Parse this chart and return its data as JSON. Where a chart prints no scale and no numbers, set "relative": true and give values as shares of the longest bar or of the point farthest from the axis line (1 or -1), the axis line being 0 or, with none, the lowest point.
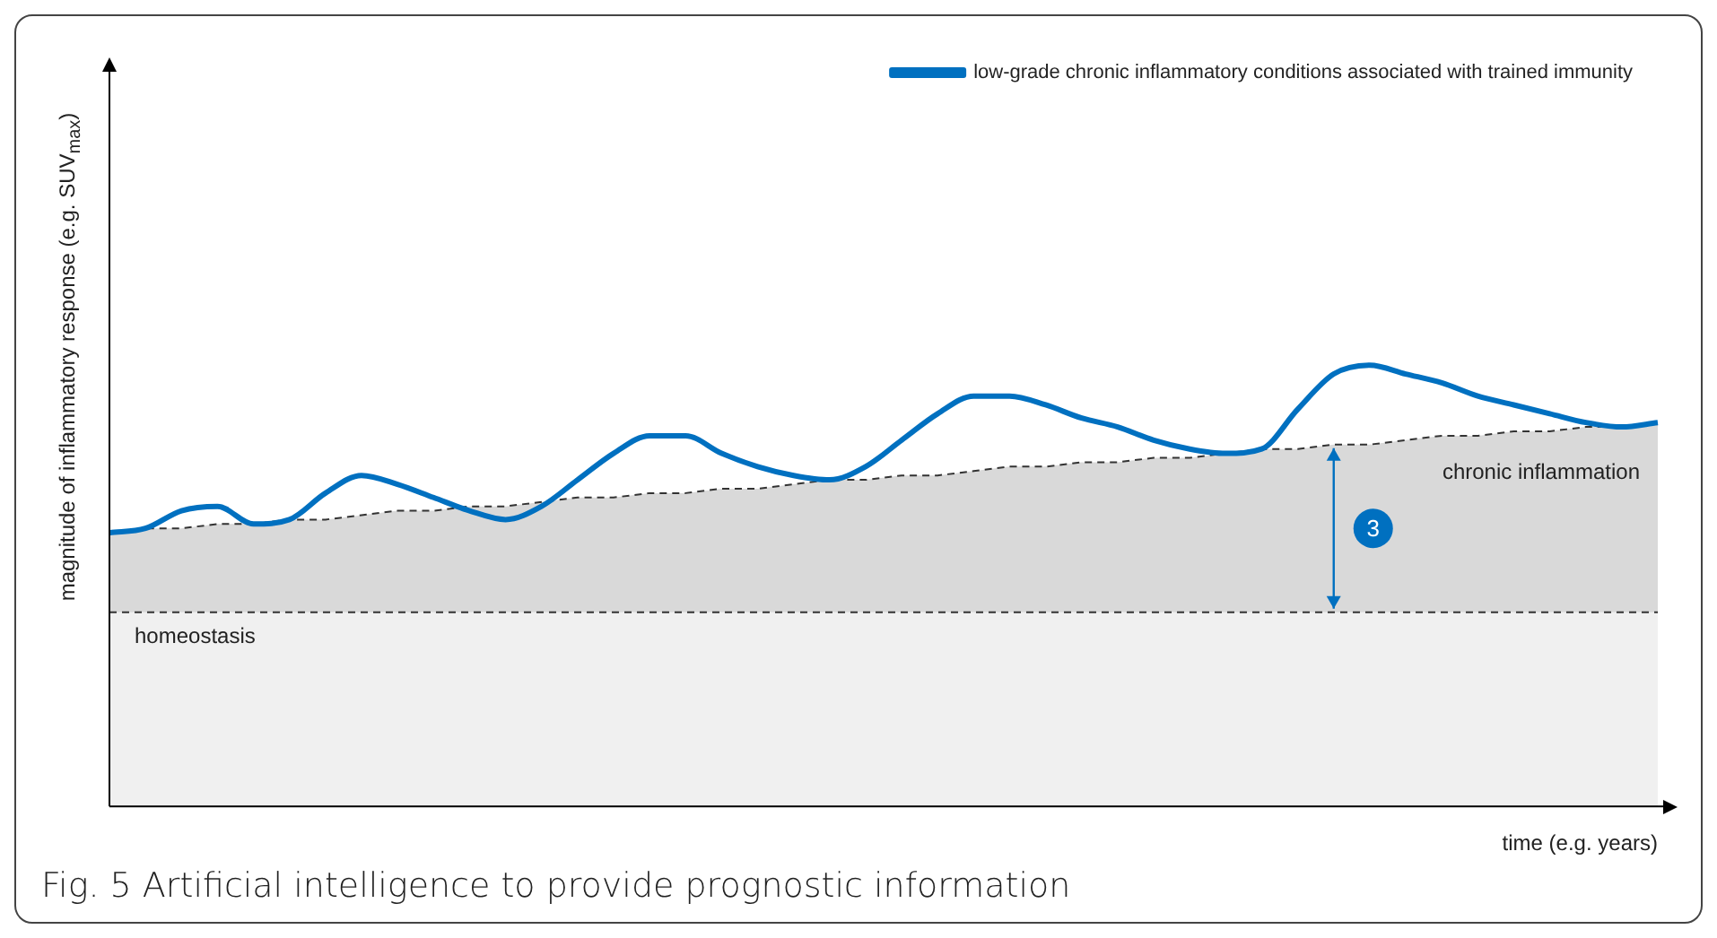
{
  "chart_data": {
    "type": "line",
    "relative": true,
    "title": "Fig. 5  Artificial intelligence to provide prognostic information",
    "xlabel": "time (e.g. years)",
    "ylabel": "magnitude of inflammatory response (e.g. SUV$_{max}$)",
    "categories": [
      null,
      null,
      null,
      null,
      null,
      null,
      null,
      null,
      null,
      null,
      null,
      null,
      null,
      null,
      null,
      null,
      null,
      null,
      null,
      null,
      null,
      null,
      null,
      null,
      null,
      null,
      null,
      null,
      null,
      null,
      null,
      null,
      null,
      null,
      null,
      null,
      null,
      null,
      null,
      null,
      null,
      null,
      null,
      null
    ],
    "series": [
      {
        "type": "area",
        "name": "chronic inflammation",
        "color": "#d9d9d9",
        "line_style": "dashed",
        "values": [
          0.62,
          0.63,
          0.63,
          0.64,
          0.64,
          0.65,
          0.65,
          0.66,
          0.67,
          0.67,
          0.68,
          0.68,
          0.69,
          0.7,
          0.7,
          0.71,
          0.71,
          0.72,
          0.72,
          0.73,
          0.74,
          0.74,
          0.75,
          0.75,
          0.76,
          0.77,
          0.77,
          0.78,
          0.78,
          0.79,
          0.79,
          0.8,
          0.81,
          0.81,
          0.82,
          0.82,
          0.83,
          0.84,
          0.84,
          0.85,
          0.85,
          0.86,
          0.86,
          0.87
        ]
      },
      {
        "type": "line",
        "name": "low-grade chronic inflammatory conditions associated with trained immunity",
        "color": "#0070c0",
        "line_style": "solid",
        "values": [
          0.62,
          0.63,
          0.67,
          0.68,
          0.64,
          0.65,
          0.71,
          0.75,
          0.73,
          0.7,
          0.67,
          0.65,
          0.68,
          0.74,
          0.8,
          0.84,
          0.84,
          0.8,
          0.77,
          0.75,
          0.74,
          0.77,
          0.83,
          0.89,
          0.93,
          0.93,
          0.91,
          0.88,
          0.86,
          0.83,
          0.81,
          0.8,
          0.81,
          0.9,
          0.98,
          1.0,
          0.98,
          0.96,
          0.93,
          0.91,
          0.89,
          0.87,
          0.86,
          0.87
        ]
      }
    ],
    "ref_lines": [
      {
        "axis": "y",
        "value": 0.44,
        "label": "homeostasis",
        "color": "#333333",
        "line_style": "dashed"
      }
    ],
    "bands": [
      {
        "axis": "y",
        "from": 0,
        "to": 0.44,
        "color": "#f0f0f0"
      }
    ],
    "annotations": [
      "3"
    ],
    "legend": "top right",
    "grid": false,
    "marker": "none",
    "tick_labels": false
  }
}
